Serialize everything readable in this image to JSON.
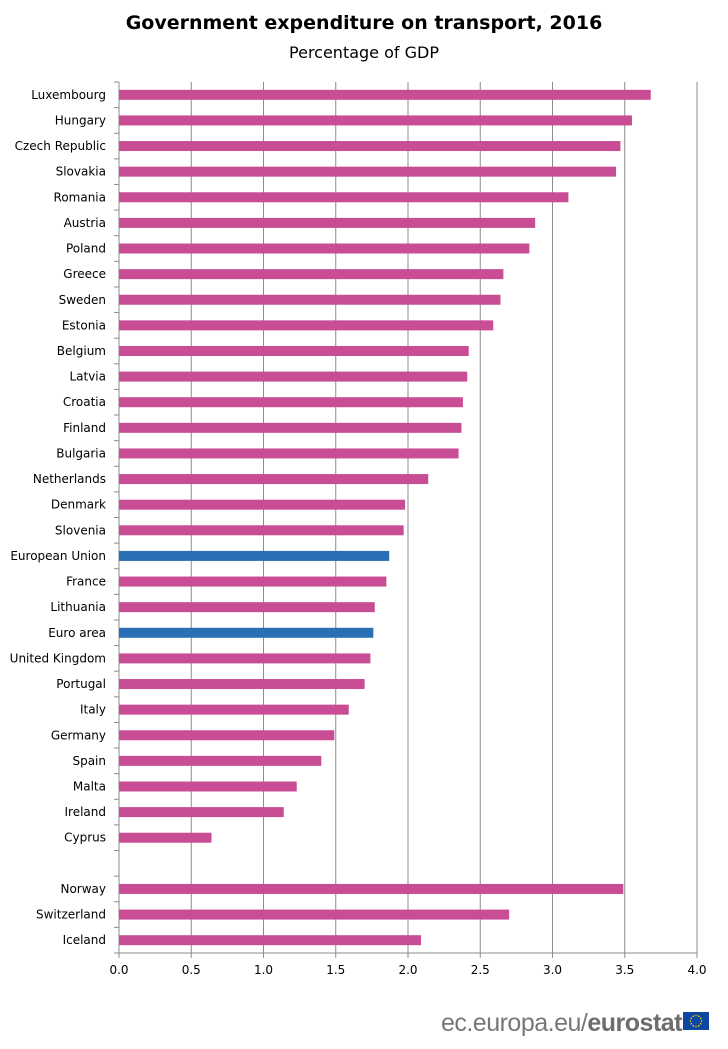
{
  "chart_data": {
    "type": "bar",
    "orientation": "horizontal",
    "title": "Government expenditure on transport, 2016",
    "subtitle": "Percentage of GDP",
    "categories": [
      "Luxembourg",
      "Hungary",
      "Czech Republic",
      "Slovakia",
      "Romania",
      "Austria",
      "Poland",
      "Greece",
      "Sweden",
      "Estonia",
      "Belgium",
      "Latvia",
      "Croatia",
      "Finland",
      "Bulgaria",
      "Netherlands",
      "Denmark",
      "Slovenia",
      "European Union",
      "France",
      "Lithuania",
      "Euro area",
      "United Kingdom",
      "Portugal",
      "Italy",
      "Germany",
      "Spain",
      "Malta",
      "Ireland",
      "Cyprus",
      "",
      "Norway",
      "Switzerland",
      "Iceland"
    ],
    "values": [
      3.68,
      3.55,
      3.47,
      3.44,
      3.11,
      2.88,
      2.84,
      2.66,
      2.64,
      2.59,
      2.42,
      2.41,
      2.38,
      2.37,
      2.35,
      2.14,
      1.98,
      1.97,
      1.87,
      1.85,
      1.77,
      1.76,
      1.74,
      1.7,
      1.59,
      1.49,
      1.4,
      1.23,
      1.14,
      0.64,
      null,
      3.49,
      2.7,
      2.09
    ],
    "highlight": [
      "European Union",
      "Euro area"
    ],
    "xlim": [
      0,
      4.0
    ],
    "xticks": [
      "0.0",
      "0.5",
      "1.0",
      "1.5",
      "2.0",
      "2.5",
      "3.0",
      "3.5",
      "4.0"
    ],
    "grid": true,
    "colors": {
      "default": "#c84d94",
      "highlight": "#286fb4",
      "grid": "#8c8c8c"
    }
  },
  "footer": {
    "source_prefix": "ec.europa.eu/",
    "source_brand": "eurostat"
  }
}
